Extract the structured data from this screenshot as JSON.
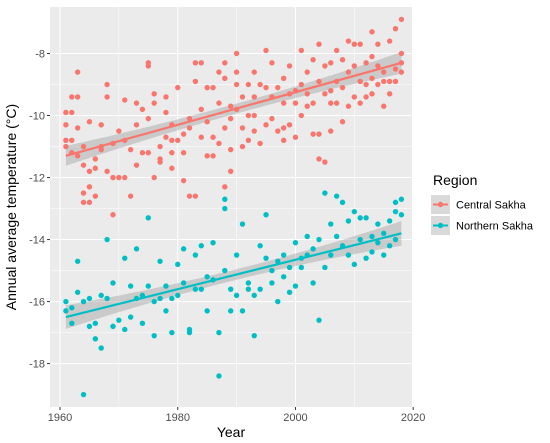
{
  "chart_data": {
    "type": "scatter",
    "xlabel": "Year",
    "ylabel": "Annual average temperature (°C)",
    "xlim": [
      1958.3,
      2019.8
    ],
    "ylim": [
      -19.4,
      -6.5
    ],
    "x_ticks": [
      1960,
      1980,
      2000,
      2020
    ],
    "y_ticks": [
      -18,
      -16,
      -14,
      -12,
      -10,
      -8
    ],
    "x_tick_labels": [
      "1960",
      "1980",
      "2000",
      "2020"
    ],
    "y_tick_labels": [
      "-18",
      "-16",
      "-14",
      "-12",
      "-10",
      "-8"
    ],
    "grid": true,
    "background": "#ebebeb",
    "legend": {
      "title": "Region",
      "position": "right"
    },
    "series": [
      {
        "name": "Central Sakha",
        "color": "#f8766d",
        "trend": {
          "x": [
            1961,
            2018
          ],
          "y": [
            -11.3,
            -8.3
          ],
          "ci_start": 0.32,
          "ci_mid": 0.16,
          "ci_end": 0.35
        },
        "points": [
          [
            1961,
            -10.8
          ],
          [
            1961,
            -10.3
          ],
          [
            1961,
            -9.9
          ],
          [
            1961,
            -11.0
          ],
          [
            1962,
            -11.2
          ],
          [
            1962,
            -9.9
          ],
          [
            1962,
            -9.4
          ],
          [
            1962,
            -10.8
          ],
          [
            1963,
            -10.4
          ],
          [
            1963,
            -8.6
          ],
          [
            1963,
            -11.3
          ],
          [
            1963,
            -9.4
          ],
          [
            1964,
            -11.0
          ],
          [
            1964,
            -12.5
          ],
          [
            1964,
            -11.6
          ],
          [
            1964,
            -12.8
          ],
          [
            1965,
            -11.8
          ],
          [
            1965,
            -10.2
          ],
          [
            1965,
            -12.3
          ],
          [
            1965,
            -12.8
          ],
          [
            1966,
            -11.4
          ],
          [
            1966,
            -12.6
          ],
          [
            1966,
            -11.7
          ],
          [
            1967,
            -11.0
          ],
          [
            1967,
            -10.3
          ],
          [
            1967,
            -11.1
          ],
          [
            1968,
            -9.4
          ],
          [
            1968,
            -9.0
          ],
          [
            1968,
            -11.8
          ],
          [
            1969,
            -12.0
          ],
          [
            1969,
            -13.2
          ],
          [
            1969,
            -10.9
          ],
          [
            1970,
            -12.0
          ],
          [
            1970,
            -10.5
          ],
          [
            1971,
            -9.5
          ],
          [
            1971,
            -10.8
          ],
          [
            1971,
            -12.0
          ],
          [
            1972,
            -11.1
          ],
          [
            1972,
            -12.6
          ],
          [
            1973,
            -9.6
          ],
          [
            1973,
            -10.3
          ],
          [
            1973,
            -11.6
          ],
          [
            1974,
            -9.8
          ],
          [
            1974,
            -11.2
          ],
          [
            1975,
            -8.4
          ],
          [
            1975,
            -8.3
          ],
          [
            1975,
            -10.1
          ],
          [
            1975,
            -11.2
          ],
          [
            1976,
            -9.3
          ],
          [
            1976,
            -9.6
          ],
          [
            1976,
            -12.0
          ],
          [
            1977,
            -11.4
          ],
          [
            1977,
            -11.0
          ],
          [
            1977,
            -11.5
          ],
          [
            1978,
            -10.7
          ],
          [
            1978,
            -9.9
          ],
          [
            1978,
            -9.4
          ],
          [
            1979,
            -10.8
          ],
          [
            1979,
            -10.3
          ],
          [
            1979,
            -11.2
          ],
          [
            1979,
            -11.7
          ],
          [
            1980,
            -9.1
          ],
          [
            1980,
            -10.8
          ],
          [
            1981,
            -12.1
          ],
          [
            1981,
            -10.6
          ],
          [
            1981,
            -11.2
          ],
          [
            1982,
            -10.1
          ],
          [
            1982,
            -10.4
          ],
          [
            1982,
            -12.6
          ],
          [
            1983,
            -8.3
          ],
          [
            1983,
            -8.9
          ],
          [
            1983,
            -12.6
          ],
          [
            1984,
            -9.8
          ],
          [
            1984,
            -10.7
          ],
          [
            1984,
            -8.3
          ],
          [
            1985,
            -9.1
          ],
          [
            1985,
            -10.2
          ],
          [
            1985,
            -11.3
          ],
          [
            1986,
            -9.1
          ],
          [
            1986,
            -10.7
          ],
          [
            1986,
            -11.3
          ],
          [
            1987,
            -8.6
          ],
          [
            1987,
            -9.6
          ],
          [
            1987,
            -10.9
          ],
          [
            1988,
            -8.3
          ],
          [
            1988,
            -8.8
          ],
          [
            1988,
            -10.4
          ],
          [
            1988,
            -12.3
          ],
          [
            1989,
            -9.7
          ],
          [
            1989,
            -10.1
          ],
          [
            1989,
            -11.1
          ],
          [
            1989,
            -11.8
          ],
          [
            1990,
            -8.0
          ],
          [
            1990,
            -9.0
          ],
          [
            1990,
            -9.8
          ],
          [
            1990,
            -8.6
          ],
          [
            1991,
            -9.4
          ],
          [
            1991,
            -10.4
          ],
          [
            1991,
            -11.0
          ],
          [
            1992,
            -9.0
          ],
          [
            1992,
            -10.0
          ],
          [
            1992,
            -10.8
          ],
          [
            1993,
            -8.6
          ],
          [
            1993,
            -9.4
          ],
          [
            1993,
            -10.5
          ],
          [
            1993,
            -10.0
          ],
          [
            1994,
            -9.0
          ],
          [
            1994,
            -10.9
          ],
          [
            1995,
            -7.9
          ],
          [
            1995,
            -9.1
          ],
          [
            1995,
            -10.3
          ],
          [
            1996,
            -8.3
          ],
          [
            1996,
            -9.4
          ],
          [
            1996,
            -10.1
          ],
          [
            1997,
            -9.1
          ],
          [
            1997,
            -10.5
          ],
          [
            1998,
            -8.8
          ],
          [
            1998,
            -9.6
          ],
          [
            1998,
            -10.4
          ],
          [
            1998,
            -10.8
          ],
          [
            1999,
            -8.4
          ],
          [
            1999,
            -9.3
          ],
          [
            1999,
            -10.3
          ],
          [
            2000,
            -9.6
          ],
          [
            2000,
            -10.7
          ],
          [
            2000,
            -9.2
          ],
          [
            2001,
            -7.9
          ],
          [
            2001,
            -9.0
          ],
          [
            2001,
            -10.0
          ],
          [
            2002,
            -8.6
          ],
          [
            2002,
            -9.3
          ],
          [
            2002,
            -9.7
          ],
          [
            2003,
            -8.2
          ],
          [
            2003,
            -9.6
          ],
          [
            2003,
            -10.6
          ],
          [
            2004,
            -7.7
          ],
          [
            2004,
            -8.9
          ],
          [
            2004,
            -10.6
          ],
          [
            2004,
            -11.4
          ],
          [
            2005,
            -8.4
          ],
          [
            2005,
            -9.3
          ],
          [
            2005,
            -11.5
          ],
          [
            2006,
            -8.3
          ],
          [
            2006,
            -9.6
          ],
          [
            2006,
            -10.5
          ],
          [
            2006,
            -9.2
          ],
          [
            2007,
            -7.9
          ],
          [
            2007,
            -8.9
          ],
          [
            2007,
            -9.6
          ],
          [
            2008,
            -8.2
          ],
          [
            2008,
            -9.1
          ],
          [
            2008,
            -10.2
          ],
          [
            2009,
            -7.6
          ],
          [
            2009,
            -8.6
          ],
          [
            2009,
            -9.7
          ],
          [
            2010,
            -7.7
          ],
          [
            2010,
            -8.4
          ],
          [
            2010,
            -9.4
          ],
          [
            2011,
            -7.7
          ],
          [
            2011,
            -8.9
          ],
          [
            2011,
            -9.6
          ],
          [
            2012,
            -8.3
          ],
          [
            2012,
            -9.0
          ],
          [
            2012,
            -9.4
          ],
          [
            2013,
            -7.3
          ],
          [
            2013,
            -8.8
          ],
          [
            2013,
            -9.3
          ],
          [
            2013,
            -8.1
          ],
          [
            2014,
            -7.7
          ],
          [
            2014,
            -8.4
          ],
          [
            2014,
            -9.0
          ],
          [
            2015,
            -8.6
          ],
          [
            2015,
            -9.7
          ],
          [
            2015,
            -8.9
          ],
          [
            2016,
            -7.6
          ],
          [
            2016,
            -8.9
          ],
          [
            2016,
            -9.3
          ],
          [
            2017,
            -7.2
          ],
          [
            2017,
            -8.5
          ],
          [
            2017,
            -8.9
          ],
          [
            2018,
            -6.9
          ],
          [
            2018,
            -8.0
          ],
          [
            2018,
            -8.3
          ],
          [
            2018,
            -8.6
          ]
        ]
      },
      {
        "name": "Northern Sakha",
        "color": "#00bfc4",
        "trend": {
          "x": [
            1961,
            2018
          ],
          "y": [
            -16.5,
            -13.8
          ],
          "ci_start": 0.38,
          "ci_mid": 0.17,
          "ci_end": 0.4
        },
        "points": [
          [
            1961,
            -16.0
          ],
          [
            1961,
            -16.3
          ],
          [
            1962,
            -16.2
          ],
          [
            1962,
            -16.7
          ],
          [
            1963,
            -14.7
          ],
          [
            1963,
            -15.7
          ],
          [
            1964,
            -16.0
          ],
          [
            1964,
            -19.0
          ],
          [
            1965,
            -15.9
          ],
          [
            1965,
            -16.8
          ],
          [
            1966,
            -16.7
          ],
          [
            1966,
            -17.2
          ],
          [
            1967,
            -15.8
          ],
          [
            1967,
            -17.5
          ],
          [
            1968,
            -15.9
          ],
          [
            1968,
            -14.0
          ],
          [
            1969,
            -16.8
          ],
          [
            1969,
            -15.4
          ],
          [
            1970,
            -16.6
          ],
          [
            1971,
            -14.6
          ],
          [
            1971,
            -16.9
          ],
          [
            1972,
            -15.5
          ],
          [
            1972,
            -16.5
          ],
          [
            1973,
            -14.3
          ],
          [
            1973,
            -15.9
          ],
          [
            1974,
            -16.7
          ],
          [
            1974,
            -15.8
          ],
          [
            1975,
            -13.3
          ],
          [
            1975,
            -15.5
          ],
          [
            1976,
            -17.1
          ],
          [
            1976,
            -16.0
          ],
          [
            1977,
            -15.9
          ],
          [
            1977,
            -14.7
          ],
          [
            1978,
            -16.3
          ],
          [
            1978,
            -15.5
          ],
          [
            1979,
            -15.9
          ],
          [
            1979,
            -17.0
          ],
          [
            1980,
            -14.8
          ],
          [
            1980,
            -15.8
          ],
          [
            1981,
            -14.3
          ],
          [
            1981,
            -15.4
          ],
          [
            1982,
            -16.9
          ],
          [
            1982,
            -17.0
          ],
          [
            1983,
            -14.5
          ],
          [
            1983,
            -15.6
          ],
          [
            1984,
            -14.2
          ],
          [
            1984,
            -15.6
          ],
          [
            1985,
            -15.2
          ],
          [
            1985,
            -16.3
          ],
          [
            1986,
            -14.1
          ],
          [
            1986,
            -15.3
          ],
          [
            1987,
            -17.0
          ],
          [
            1987,
            -18.4
          ],
          [
            1988,
            -13.0
          ],
          [
            1988,
            -15.0
          ],
          [
            1988,
            -12.7
          ],
          [
            1989,
            -15.6
          ],
          [
            1989,
            -16.3
          ],
          [
            1990,
            -14.5
          ],
          [
            1990,
            -15.8
          ],
          [
            1991,
            -13.5
          ],
          [
            1991,
            -16.3
          ],
          [
            1992,
            -15.4
          ],
          [
            1992,
            -15.6
          ],
          [
            1993,
            -15.8
          ],
          [
            1993,
            -17.1
          ],
          [
            1994,
            -14.2
          ],
          [
            1994,
            -15.6
          ],
          [
            1995,
            -13.2
          ],
          [
            1995,
            -14.6
          ],
          [
            1996,
            -15.4
          ],
          [
            1996,
            -15.0
          ],
          [
            1997,
            -14.7
          ],
          [
            1997,
            -16.0
          ],
          [
            1998,
            -14.5
          ],
          [
            1998,
            -15.2
          ],
          [
            1999,
            -14.9
          ],
          [
            1999,
            -15.7
          ],
          [
            2000,
            -14.1
          ],
          [
            2000,
            -15.5
          ],
          [
            2001,
            -14.6
          ],
          [
            2001,
            -14.9
          ],
          [
            2002,
            -14.5
          ],
          [
            2002,
            -13.9
          ],
          [
            2003,
            -15.4
          ],
          [
            2003,
            -14.3
          ],
          [
            2004,
            -16.6
          ],
          [
            2004,
            -14.0
          ],
          [
            2005,
            -12.5
          ],
          [
            2005,
            -14.9
          ],
          [
            2006,
            -13.5
          ],
          [
            2006,
            -14.5
          ],
          [
            2007,
            -12.6
          ],
          [
            2007,
            -13.9
          ],
          [
            2008,
            -12.8
          ],
          [
            2008,
            -14.2
          ],
          [
            2009,
            -13.4
          ],
          [
            2009,
            -14.5
          ],
          [
            2010,
            -13.1
          ],
          [
            2010,
            -14.8
          ],
          [
            2011,
            -13.3
          ],
          [
            2011,
            -14.0
          ],
          [
            2012,
            -13.3
          ],
          [
            2012,
            -14.6
          ],
          [
            2013,
            -13.9
          ],
          [
            2013,
            -14.4
          ],
          [
            2014,
            -13.5
          ],
          [
            2014,
            -14.1
          ],
          [
            2015,
            -14.5
          ],
          [
            2015,
            -13.8
          ],
          [
            2016,
            -13.4
          ],
          [
            2016,
            -14.2
          ],
          [
            2017,
            -13.1
          ],
          [
            2017,
            -12.8
          ],
          [
            2017,
            -14.0
          ],
          [
            2018,
            -12.7
          ],
          [
            2018,
            -13.2
          ]
        ]
      }
    ]
  }
}
